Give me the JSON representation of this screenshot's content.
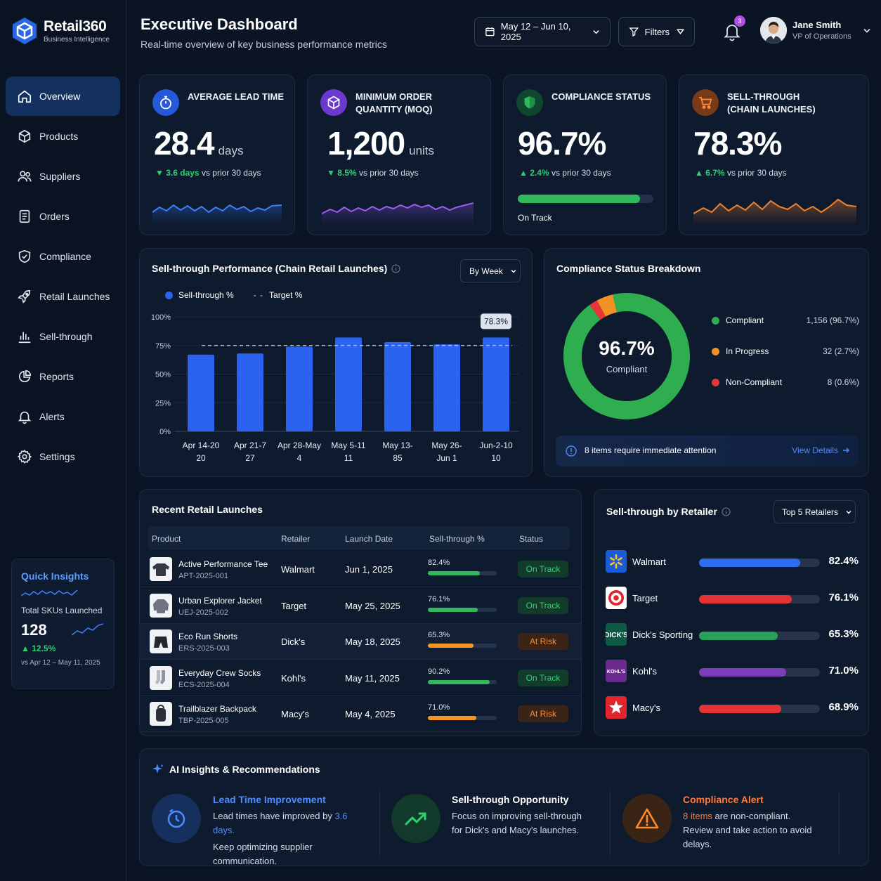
{
  "brand": {
    "name": "Retail360",
    "subtitle": "Business Intelligence"
  },
  "nav": [
    "Overview",
    "Products",
    "Suppliers",
    "Orders",
    "Compliance",
    "Retail Launches",
    "Sell-through",
    "Reports",
    "Alerts",
    "Settings"
  ],
  "quick_insights": {
    "title": "Quick Insights",
    "label": "Total SKUs Launched",
    "value": "128",
    "change": "12.5%",
    "compare": "vs Apr 12 – May 11, 2025"
  },
  "header": {
    "title": "Executive Dashboard",
    "subtitle": "Real-time overview of key business performance metrics",
    "date_range": "May 12 – Jun 10, 2025",
    "filters": "Filters",
    "notifications": "3",
    "user_name": "Jane Smith",
    "user_role": "VP of Operations"
  },
  "kpis": [
    {
      "label": "Average Lead Time",
      "value": "28.4",
      "unit": "days",
      "delta": "3.6 days",
      "compare": "vs prior 30 days",
      "direction": "down",
      "color": "#3d7cf2"
    },
    {
      "label_line1": "Minimum Order",
      "label_line2": "Quantity (MOQ)",
      "value": "1,200",
      "unit": "units",
      "delta": "8.5%",
      "compare": "vs prior 30 days",
      "direction": "down",
      "color": "#8a4ee8"
    },
    {
      "label": "Compliance Status",
      "value": "96.7%",
      "delta": "2.4%",
      "compare": "vs prior 30 days",
      "direction": "up",
      "progress": 0.9,
      "track_label": "On Track",
      "color": "#2fb85c"
    },
    {
      "label_line1": "Sell-through",
      "label_line2": "(Chain Launches)",
      "value": "78.3%",
      "delta": "6.7%",
      "compare": "vs prior 30 days",
      "direction": "up",
      "color": "#ec7b2a"
    }
  ],
  "sellthrough": {
    "title": "Sell-through Performance (Chain Retail Launches)",
    "dropdown": "By Week",
    "legend_series": "Sell-through %",
    "legend_target": "Target %",
    "callout": "78.3%"
  },
  "chart_data": {
    "type": "bar",
    "categories": [
      [
        "Apr 14-20",
        "20"
      ],
      [
        "Apr 21-7",
        "27"
      ],
      [
        "Apr 28-May",
        "4"
      ],
      [
        "May 5-11",
        "11"
      ],
      [
        "May 13-",
        "85"
      ],
      [
        "May 26-",
        "Jun 1"
      ],
      [
        "Jun-2-10",
        "10"
      ]
    ],
    "series": [
      {
        "name": "Sell-through %",
        "values": [
          67,
          68,
          74,
          82,
          78,
          76,
          82
        ]
      }
    ],
    "target": 75,
    "ylim": [
      0,
      100
    ],
    "yticks": [
      "0%",
      "25%",
      "50%",
      "75%",
      "100%"
    ],
    "bar_color": "#2c62f0"
  },
  "compliance": {
    "title": "Compliance Status Breakdown",
    "center_value": "96.7%",
    "center_label": "Compliant",
    "items": [
      {
        "name": "Compliant",
        "value": "1,156 (96.7%)",
        "share": 96.7,
        "color": "#2fae4f"
      },
      {
        "name": "In Progress",
        "value": "32 (2.7%)",
        "share": 2.7,
        "color": "#f39224"
      },
      {
        "name": "Non-Compliant",
        "value": "8 (0.6%)",
        "share": 0.6,
        "color": "#e8353a"
      }
    ],
    "alert": "8 items require immediate attention",
    "alert_link": "View Details"
  },
  "launches": {
    "title": "Recent Retail Launches",
    "columns": [
      "Product",
      "Retailer",
      "Launch Date",
      "Sell-through %",
      "Status"
    ],
    "rows": [
      {
        "product": "Active Performance Tee",
        "sku": "APT-2025-001",
        "retailer": "Walmart",
        "date": "Jun 1, 2025",
        "pct": "82.4%",
        "fill": 0.76,
        "status": "On Track",
        "ok": true
      },
      {
        "product": "Urban Explorer Jacket",
        "sku": "UEJ-2025-002",
        "retailer": "Target",
        "date": "May 25, 2025",
        "pct": "76.1%",
        "fill": 0.72,
        "status": "On Track",
        "ok": true
      },
      {
        "product": "Eco Run Shorts",
        "sku": "ERS-2025-003",
        "retailer": "Dick's",
        "date": "May 18, 2025",
        "pct": "65.3%",
        "fill": 0.66,
        "status": "At Risk",
        "ok": false
      },
      {
        "product": "Everyday Crew Socks",
        "sku": "ECS-2025-004",
        "retailer": "Kohl's",
        "date": "May 11, 2025",
        "pct": "90.2%",
        "fill": 0.9,
        "status": "On Track",
        "ok": true
      },
      {
        "product": "Trailblazer Backpack",
        "sku": "TBP-2025-005",
        "retailer": "Macy's",
        "date": "May 4, 2025",
        "pct": "71.0%",
        "fill": 0.7,
        "status": "At Risk",
        "ok": false
      }
    ]
  },
  "retailers": {
    "title": "Sell-through by Retailer",
    "dropdown": "Top 5 Retailers",
    "items": [
      {
        "name": "Walmart",
        "value": "82.4%",
        "fill": 0.84,
        "color": "#2f6df0",
        "logo_bg": "#1a5bd6"
      },
      {
        "name": "Target",
        "value": "76.1%",
        "fill": 0.77,
        "color": "#e33336",
        "logo_bg": "#ffffff"
      },
      {
        "name": "Dick's Sporting",
        "value": "65.3%",
        "fill": 0.65,
        "color": "#2aa05a",
        "logo_bg": "#0f5a45"
      },
      {
        "name": "Kohl's",
        "value": "71.0%",
        "fill": 0.72,
        "color": "#7b3db8",
        "logo_bg": "#6a2a8e"
      },
      {
        "name": "Macy's",
        "value": "68.9%",
        "fill": 0.68,
        "color": "#e33336",
        "logo_bg": "#e1252c"
      }
    ]
  },
  "ai": {
    "title": "AI Insights & Recommendations",
    "cards": [
      {
        "title": "Lead Time Improvement",
        "pre": "Lead times have improved by ",
        "highlight": "3.6 days.",
        "post": "Keep optimizing supplier communication."
      },
      {
        "title": "Sell-through Opportunity",
        "text": "Focus on improving sell-through for Dick's and Macy's launches."
      },
      {
        "title": "Compliance Alert",
        "highlight": "8 items",
        "text1": " are non-compliant.",
        "text2": "Review and take action to avoid delays."
      }
    ]
  }
}
